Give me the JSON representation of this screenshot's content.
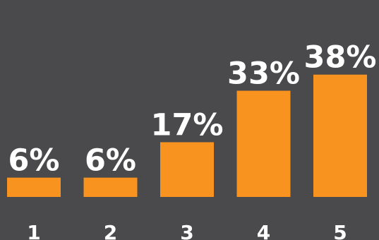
{
  "colors": {
    "background": "#4a4a4c",
    "bar": "#f7931e",
    "text": "#ffffff"
  },
  "chart_data": {
    "type": "bar",
    "categories": [
      "1",
      "2",
      "3",
      "4",
      "5"
    ],
    "values": [
      6,
      6,
      17,
      33,
      38
    ],
    "data_labels": [
      "6%",
      "6%",
      "17%",
      "33%",
      "38%"
    ],
    "title": "",
    "xlabel": "",
    "ylabel": "",
    "ylim": [
      0,
      40
    ],
    "grid": false,
    "legend": "none"
  }
}
